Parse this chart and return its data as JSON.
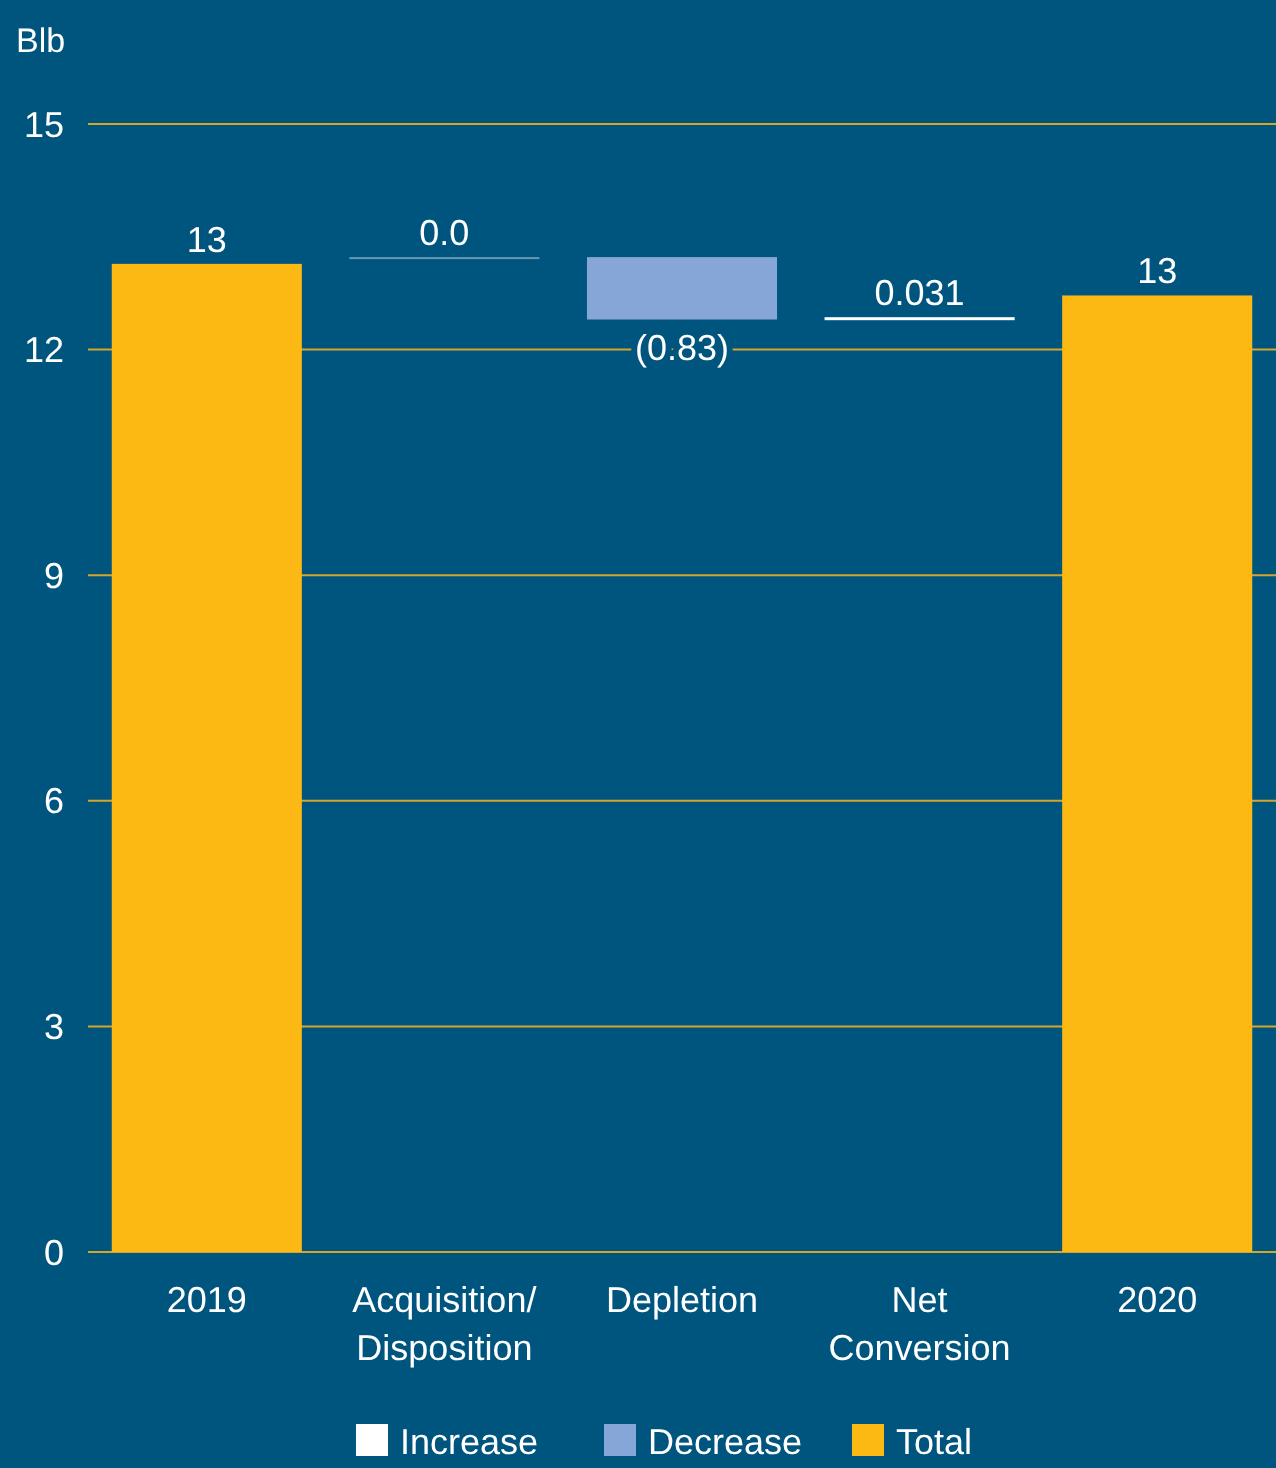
{
  "chart_data": {
    "type": "bar",
    "ylabel": "Blb",
    "categories": [
      "2019",
      "Acquisition/ Disposition",
      "Depletion",
      "Net Conversion",
      "2020"
    ],
    "series": [
      {
        "name": "Increase",
        "color": "#ffffff",
        "values": [
          null,
          0.0,
          null,
          0.031,
          null
        ],
        "base": [
          null,
          13.23,
          null,
          12.4,
          null
        ],
        "value_labels": [
          null,
          "0.0",
          null,
          "0.031",
          null
        ]
      },
      {
        "name": "Decrease",
        "color": "#86a6d8",
        "values": [
          null,
          null,
          -0.83,
          null,
          null
        ],
        "base": [
          null,
          null,
          13.23,
          null,
          null
        ],
        "value_labels": [
          null,
          null,
          "(0.83)",
          null,
          null
        ]
      },
      {
        "name": "Total",
        "color": "#fdb913",
        "values": [
          13.14,
          null,
          null,
          null,
          12.72
        ],
        "base": [
          0,
          null,
          null,
          null,
          0
        ],
        "value_labels": [
          "13",
          null,
          null,
          null,
          "13"
        ]
      }
    ],
    "ylim": [
      0,
      15
    ],
    "yticks": [
      0,
      3,
      6,
      9,
      12,
      15
    ],
    "grid": "y",
    "legend": "bottom"
  }
}
